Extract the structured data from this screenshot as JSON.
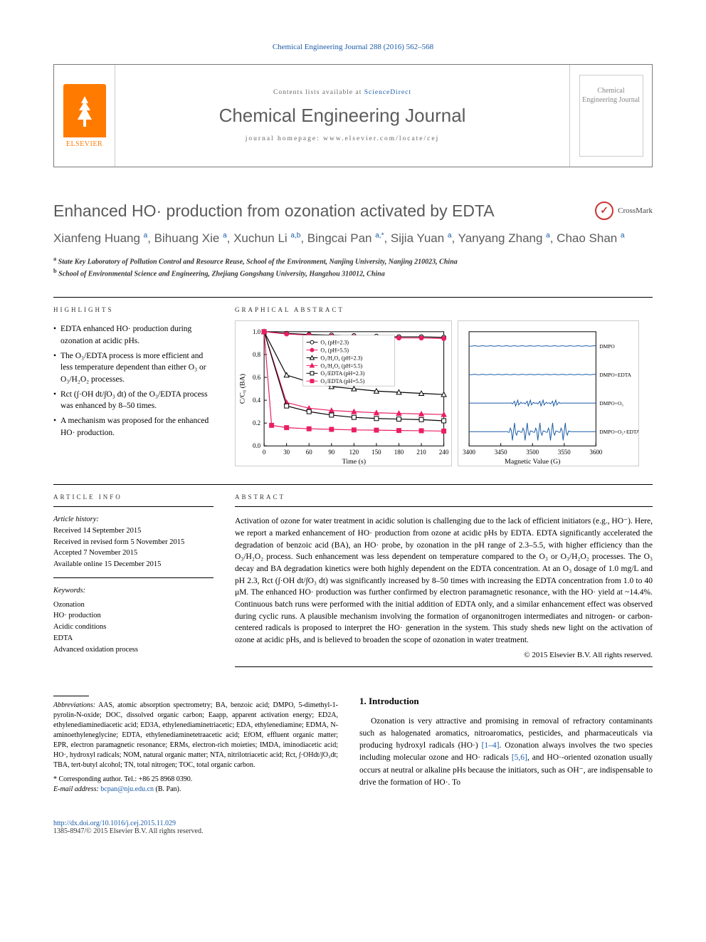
{
  "top_ref": "Chemical Engineering Journal 288 (2016) 562–568",
  "header": {
    "contents_prefix": "Contents lists available at ",
    "contents_link": "ScienceDirect",
    "journal_name": "Chemical Engineering Journal",
    "homepage_prefix": "journal homepage: ",
    "homepage_url": "www.elsevier.com/locate/cej",
    "elsevier": "ELSEVIER",
    "cover_title": "Chemical Engineering Journal"
  },
  "title": "Enhanced HO· production from ozonation activated by EDTA",
  "crossmark": "CrossMark",
  "authors_html": "Xianfeng Huang <sup>a</sup>, Bihuang Xie <sup>a</sup>, Xuchun Li <sup>a,b</sup>, Bingcai Pan <sup>a,*</sup>, Sijia Yuan <sup>a</sup>, Yanyang Zhang <sup>a</sup>, Chao Shan <sup>a</sup>",
  "affiliations": [
    "a State Key Laboratory of Pollution Control and Resource Reuse, School of the Environment, Nanjing University, Nanjing 210023, China",
    "b School of Environmental Science and Engineering, Zhejiang Gongshang University, Hangzhou 310012, China"
  ],
  "highlights_label": "HIGHLIGHTS",
  "highlights": [
    "EDTA enhanced HO· production during ozonation at acidic pHs.",
    "The O₃/EDTA process is more efficient and less temperature dependent than either O₃ or O₃/H₂O₂ processes.",
    "Rct (∫·OH dt/∫O₃ dt) of the O₃/EDTA process was enhanced by 8–50 times.",
    "A mechanism was proposed for the enhanced HO· production."
  ],
  "ga_label": "GRAPHICAL ABSTRACT",
  "chart": {
    "type": "line",
    "ylabel": "C/C₀ (BA)",
    "xlabel": "Time (s)",
    "ylim": [
      0,
      1.0
    ],
    "ytick_step": 0.2,
    "xlim": [
      0,
      240
    ],
    "xticks": [
      0,
      30,
      60,
      90,
      120,
      150,
      180,
      210,
      240
    ],
    "axis_fontsize": 9,
    "label_fontsize": 10,
    "background_color": "#ffffff",
    "grid": false,
    "series": [
      {
        "name": "O₃ (pH=2.3)",
        "marker": "circle-open",
        "color": "#000000",
        "line_color": "#000000",
        "points": [
          [
            0,
            1.0
          ],
          [
            30,
            0.985
          ],
          [
            60,
            0.975
          ],
          [
            90,
            0.97
          ],
          [
            120,
            0.965
          ],
          [
            150,
            0.96
          ],
          [
            180,
            0.955
          ],
          [
            210,
            0.955
          ],
          [
            240,
            0.95
          ]
        ]
      },
      {
        "name": "O₃ (pH=5.5)",
        "marker": "circle",
        "color": "#e91e63",
        "line_color": "#e91e63",
        "points": [
          [
            0,
            1.0
          ],
          [
            30,
            0.98
          ],
          [
            60,
            0.97
          ],
          [
            90,
            0.96
          ],
          [
            120,
            0.955
          ],
          [
            150,
            0.95
          ],
          [
            180,
            0.945
          ],
          [
            210,
            0.945
          ],
          [
            240,
            0.94
          ]
        ]
      },
      {
        "name": "O₃/H₂O₂ (pH=2.3)",
        "marker": "triangle-open",
        "color": "#000000",
        "line_color": "#000000",
        "points": [
          [
            0,
            1.0
          ],
          [
            30,
            0.62
          ],
          [
            60,
            0.56
          ],
          [
            90,
            0.52
          ],
          [
            120,
            0.5
          ],
          [
            150,
            0.48
          ],
          [
            180,
            0.47
          ],
          [
            210,
            0.46
          ],
          [
            240,
            0.45
          ]
        ]
      },
      {
        "name": "O₃/H₂O₂ (pH=5.5)",
        "marker": "triangle",
        "color": "#e91e63",
        "line_color": "#e91e63",
        "points": [
          [
            0,
            1.0
          ],
          [
            30,
            0.38
          ],
          [
            60,
            0.33
          ],
          [
            90,
            0.31
          ],
          [
            120,
            0.3
          ],
          [
            150,
            0.29
          ],
          [
            180,
            0.285
          ],
          [
            210,
            0.28
          ],
          [
            240,
            0.275
          ]
        ]
      },
      {
        "name": "O₃/EDTA (pH=2.3)",
        "marker": "square-open",
        "color": "#000000",
        "line_color": "#000000",
        "points": [
          [
            0,
            1.0
          ],
          [
            30,
            0.35
          ],
          [
            60,
            0.3
          ],
          [
            90,
            0.27
          ],
          [
            120,
            0.25
          ],
          [
            150,
            0.24
          ],
          [
            180,
            0.235
          ],
          [
            210,
            0.23
          ],
          [
            240,
            0.22
          ]
        ]
      },
      {
        "name": "O₃/EDTA (pH=5.5)",
        "marker": "square",
        "color": "#e91e63",
        "line_color": "#e91e63",
        "points": [
          [
            0,
            1.0
          ],
          [
            10,
            0.18
          ],
          [
            30,
            0.16
          ],
          [
            60,
            0.15
          ],
          [
            90,
            0.145
          ],
          [
            120,
            0.14
          ],
          [
            150,
            0.138
          ],
          [
            180,
            0.135
          ],
          [
            210,
            0.133
          ],
          [
            240,
            0.13
          ]
        ]
      }
    ]
  },
  "epr": {
    "type": "line-stack",
    "xlabel": "Magnetic Value (G)",
    "xlim": [
      3400,
      3600
    ],
    "xticks": [
      3400,
      3450,
      3500,
      3550,
      3600
    ],
    "axis_fontsize": 9,
    "label_fontsize": 10,
    "traces": [
      {
        "label": "DMPO",
        "color": "#1a5ba8"
      },
      {
        "label": "DMPO+EDTA",
        "color": "#1a5ba8"
      },
      {
        "label": "DMPO+O₃",
        "color": "#1a5ba8"
      },
      {
        "label": "DMPO+O₃+EDTA",
        "color": "#1a5ba8"
      }
    ]
  },
  "article_info_label": "ARTICLE INFO",
  "article_history_label": "Article history:",
  "article_history": [
    "Received 14 September 2015",
    "Received in revised form 5 November 2015",
    "Accepted 7 November 2015",
    "Available online 15 December 2015"
  ],
  "keywords_label": "Keywords:",
  "keywords": [
    "Ozonation",
    "HO· production",
    "Acidic conditions",
    "EDTA",
    "Advanced oxidation process"
  ],
  "abstract_label": "ABSTRACT",
  "abstract": "Activation of ozone for water treatment in acidic solution is challenging due to the lack of efficient initiators (e.g., HO⁻). Here, we report a marked enhancement of HO· production from ozone at acidic pHs by EDTA. EDTA significantly accelerated the degradation of benzoic acid (BA), an HO· probe, by ozonation in the pH range of 2.3–5.5, with higher efficiency than the O₃/H₂O₂ process. Such enhancement was less dependent on temperature compared to the O₃ or O₃/H₂O₂ processes. The O₃ decay and BA degradation kinetics were both highly dependent on the EDTA concentration. At an O₃ dosage of 1.0 mg/L and pH 2.3, Rct (∫·OH dt/∫O₃ dt) was significantly increased by 8–50 times with increasing the EDTA concentration from 1.0 to 40 μM. The enhanced HO· production was further confirmed by electron paramagnetic resonance, with the HO· yield at ~14.4%. Continuous batch runs were performed with the initial addition of EDTA only, and a similar enhancement effect was observed during cyclic runs. A plausible mechanism involving the formation of organonitrogen intermediates and nitrogen- or carbon- centered radicals is proposed to interpret the HO· generation in the system. This study sheds new light on the activation of ozone at acidic pHs, and is believed to broaden the scope of ozonation in water treatment.",
  "copyright": "© 2015 Elsevier B.V. All rights reserved.",
  "abbreviations_label": "Abbreviations:",
  "abbreviations": "AAS, atomic absorption spectrometry; BA, benzoic acid; DMPO, 5-dimethyl-1-pyrolin-N-oxide; DOC, dissolved organic carbon; Eaapp, apparent activation energy; ED2A, ethylenediaminediacetic acid; ED3A, ethylenediaminetriacetic; EDA, ethylenediamine; EDMA, N-aminoethyleneglycine; EDTA, ethylenediaminetetraacetic acid; EfOM, effluent organic matter; EPR, electron paramagnetic resonance; ERMs, electron-rich moieties; IMDA, iminodiacetic acid; HO·, hydroxyl radicals; NOM, natural organic matter; NTA, nitrilotriacetic acid; Rct, ∫·OHdt/∫O₃dt; TBA, tert-butyl alcohol; TN, total nitrogen; TOC, total organic carbon.",
  "corresponding": "* Corresponding author. Tel.: +86 25 8968 0390.",
  "email_label": "E-mail address:",
  "email": "bcpan@nju.edu.cn",
  "email_suffix": "(B. Pan).",
  "intro_heading": "1. Introduction",
  "intro_text": "Ozonation is very attractive and promising in removal of refractory contaminants such as halogenated aromatics, nitroaromatics, pesticides, and pharmaceuticals via producing hydroxyl radicals (HO·) [1–4]. Ozonation always involves the two species including molecular ozone and HO· radicals [5,6], and HO·-oriented ozonation usually occurs at neutral or alkaline pHs because the initiators, such as OH⁻, are indispensable to drive the formation of HO·. To",
  "intro_refs": {
    "ref1": "[1–4]",
    "ref2": "[5,6]"
  },
  "footer": {
    "doi": "http://dx.doi.org/10.1016/j.cej.2015.11.029",
    "issn": "1385-8947/© 2015 Elsevier B.V. All rights reserved."
  }
}
